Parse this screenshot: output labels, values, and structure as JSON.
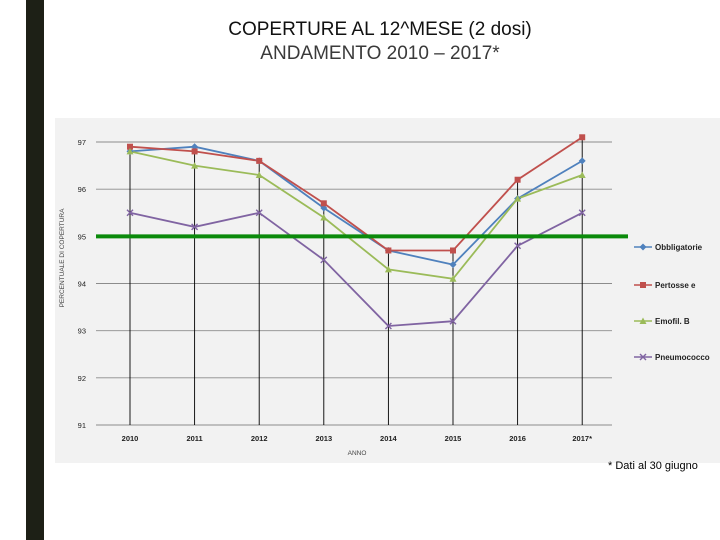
{
  "slide": {
    "title": "COPERTURE AL 12^MESE (2 dosi)",
    "subtitle": "ANDAMENTO 2010 – 2017*",
    "footnote": "* Dati al 30 giugno"
  },
  "chart_data": {
    "type": "line",
    "title": "",
    "xlabel": "ANNO",
    "ylabel": "PERCENTUALE DI COPERTURA",
    "categories": [
      "2010",
      "2011",
      "2012",
      "2013",
      "2014",
      "2015",
      "2016",
      "2017*"
    ],
    "ylim": [
      91,
      97
    ],
    "yticks": [
      "97",
      "96",
      "95",
      "94",
      "93",
      "92",
      "91"
    ],
    "grid": true,
    "legend_position": "right",
    "target_line": {
      "value": 95,
      "color": "#0b8a0b"
    },
    "series": [
      {
        "name": "Obbligatorie",
        "color": "#4f81bd",
        "marker": "diamond",
        "values": [
          96.8,
          96.9,
          96.6,
          95.6,
          94.7,
          94.4,
          95.8,
          96.6
        ]
      },
      {
        "name": "Pertosse e",
        "color": "#c0504d",
        "marker": "square",
        "values": [
          96.9,
          96.8,
          96.6,
          95.7,
          94.7,
          94.7,
          96.2,
          97.1
        ]
      },
      {
        "name": "Emofil. B",
        "color": "#9bbb59",
        "marker": "triangle",
        "values": [
          96.8,
          96.5,
          96.3,
          95.4,
          94.3,
          94.1,
          95.8,
          96.3
        ]
      },
      {
        "name": "Pneumococco",
        "color": "#8064a2",
        "marker": "x",
        "values": [
          95.5,
          95.2,
          95.5,
          94.5,
          93.1,
          93.2,
          94.8,
          95.5
        ]
      }
    ]
  }
}
